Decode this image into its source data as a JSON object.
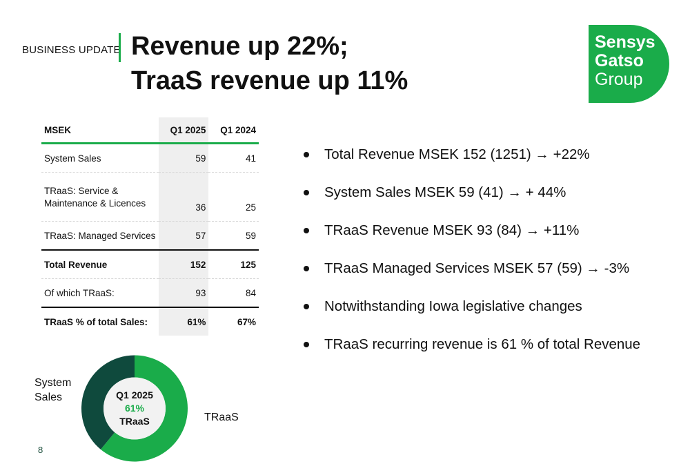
{
  "header": {
    "section_label": "BUSINESS UPDATE",
    "title_line1": "Revenue up 22%;",
    "title_line2": "TraaS revenue up 11%"
  },
  "logo": {
    "line1": "Sensys",
    "line2": "Gatso",
    "line3": "Group"
  },
  "colors": {
    "accent": "#1aac4a",
    "dark_green": "#0f4a3d"
  },
  "table": {
    "headers": [
      "MSEK",
      "Q1 2025",
      "Q1 2024"
    ],
    "rows": [
      {
        "label": "System Sales",
        "q1_2025": "59",
        "q1_2024": "41"
      },
      {
        "label_line1": "TRaaS: Service &",
        "label_line2": "Maintenance & Licences",
        "q1_2025": "36",
        "q1_2024": "25"
      },
      {
        "label": "TRaaS: Managed Services",
        "q1_2025": "57",
        "q1_2024": "59"
      },
      {
        "label": "Total Revenue",
        "q1_2025": "152",
        "q1_2024": "125"
      },
      {
        "label": "Of which TRaaS:",
        "q1_2025": "93",
        "q1_2024": "84"
      },
      {
        "label": "TRaaS % of total Sales:",
        "q1_2025": "61%",
        "q1_2024": "67%"
      }
    ]
  },
  "bullets": [
    "Total Revenue MSEK 152  (1251) → +22%",
    "System Sales MSEK 59  (41) →  + 44%",
    "TRaaS Revenue MSEK 93 (84) →  +11%",
    "TRaaS Managed Services MSEK 57 (59)  →  -3%",
    "Notwithstanding Iowa legislative changes",
    "TRaaS recurring revenue is 61 % of total Revenue"
  ],
  "donut": {
    "center_line1": "Q1  2025",
    "center_line2": "61%",
    "center_line3": "TRaaS",
    "label_system_sales_1": "System",
    "label_system_sales_2": "Sales",
    "label_traas": "TRaaS"
  },
  "chart_data": {
    "type": "pie",
    "categories": [
      "TRaaS",
      "System Sales"
    ],
    "values": [
      61,
      39
    ],
    "colors": [
      "#1aac4a",
      "#0f4a3d"
    ]
  },
  "page_number": "8"
}
